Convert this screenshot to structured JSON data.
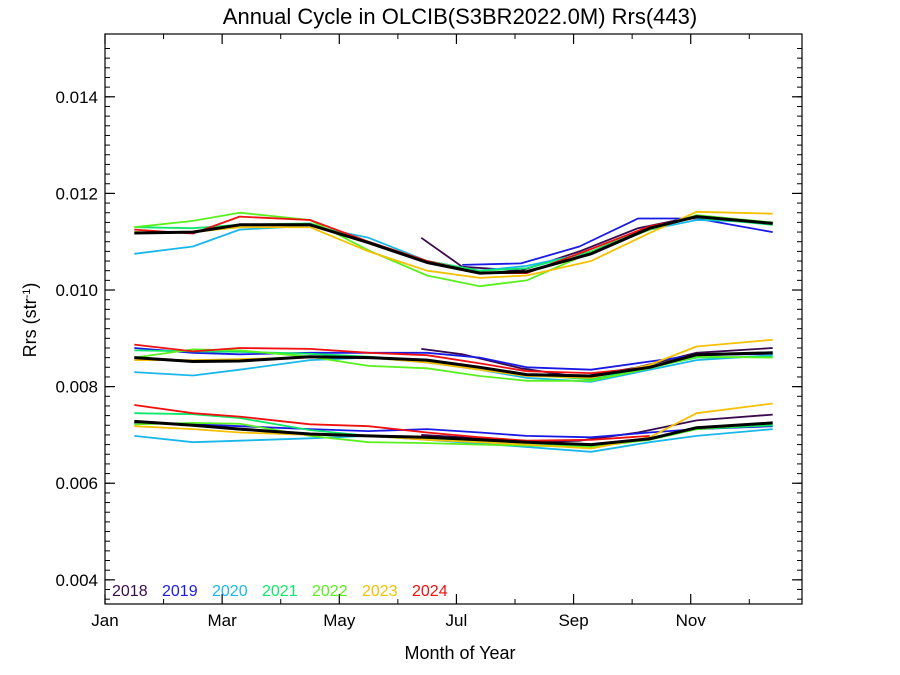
{
  "chart_data": {
    "type": "line",
    "title": "Annual Cycle in OLCIB(S3BR2022.0M) Rrs(443)",
    "xlabel": "Month of Year",
    "ylabel_main": "Rrs (str",
    "ylabel_sup": "-1",
    "ylabel_end": ")",
    "x_ticks": [
      {
        "label": "Jan",
        "value": 1
      },
      {
        "label": "Mar",
        "value": 3
      },
      {
        "label": "May",
        "value": 5
      },
      {
        "label": "Jul",
        "value": 7
      },
      {
        "label": "Sep",
        "value": 9
      },
      {
        "label": "Nov",
        "value": 11
      }
    ],
    "y_ticks": [
      {
        "label": "0.004",
        "value": 0.004
      },
      {
        "label": "0.006",
        "value": 0.006
      },
      {
        "label": "0.008",
        "value": 0.008
      },
      {
        "label": "0.010",
        "value": 0.01
      },
      {
        "label": "0.012",
        "value": 0.012
      },
      {
        "label": "0.014",
        "value": 0.014
      }
    ],
    "xlim": [
      1,
      12.9
    ],
    "ylim": [
      0.0035,
      0.0153
    ],
    "legend_position": "bottom-left",
    "legend": [
      {
        "label": "2018",
        "color": "#3a0a4f"
      },
      {
        "label": "2019",
        "color": "#1a1ae6"
      },
      {
        "label": "2020",
        "color": "#1ab8ea"
      },
      {
        "label": "2021",
        "color": "#0ee868"
      },
      {
        "label": "2022",
        "color": "#5af01e"
      },
      {
        "label": "2023",
        "color": "#f5c000"
      },
      {
        "label": "2024",
        "color": "#f01010"
      }
    ],
    "mean_color": "#000000",
    "series": [
      {
        "color": "#3a0a4f",
        "group": "upper",
        "x": [
          6.4,
          7.1,
          8.1,
          9.1,
          10.1,
          11.1,
          12.4
        ],
        "y": [
          0.01108,
          0.01048,
          0.0104,
          0.0108,
          0.01128,
          0.01153,
          0.01138
        ]
      },
      {
        "color": "#1a1ae6",
        "group": "upper",
        "x": [
          7.1,
          8.1,
          9.1,
          10.1,
          11.1,
          12.4
        ],
        "y": [
          0.01052,
          0.01055,
          0.0109,
          0.01148,
          0.01148,
          0.0112
        ]
      },
      {
        "color": "#1ab8ea",
        "group": "upper",
        "x": [
          1.5,
          2.5,
          3.3,
          4.5,
          5.5,
          6.5,
          7.4,
          8.2,
          9.3,
          10.3,
          11.1,
          12.4
        ],
        "y": [
          0.01075,
          0.0109,
          0.01125,
          0.01133,
          0.01108,
          0.0106,
          0.0104,
          0.0105,
          0.01078,
          0.01125,
          0.01145,
          0.0114
        ]
      },
      {
        "color": "#0ee868",
        "group": "upper",
        "x": [
          1.5,
          2.5,
          3.3,
          4.5,
          5.5,
          6.5,
          7.4,
          8.2,
          9.3,
          10.3,
          11.1,
          12.4
        ],
        "y": [
          0.0113,
          0.01128,
          0.01135,
          0.01138,
          0.011,
          0.0106,
          0.0104,
          0.01045,
          0.0108,
          0.0113,
          0.0115,
          0.01135
        ]
      },
      {
        "color": "#5af01e",
        "group": "upper",
        "x": [
          1.5,
          2.5,
          3.3,
          4.5,
          5.5,
          6.5,
          7.4,
          8.2,
          9.3,
          10.3,
          11.1,
          12.4
        ],
        "y": [
          0.0113,
          0.01143,
          0.0116,
          0.01145,
          0.01082,
          0.0103,
          0.01008,
          0.0102,
          0.01078,
          0.01125,
          0.01155,
          0.0114
        ]
      },
      {
        "color": "#f5c000",
        "group": "upper",
        "x": [
          1.5,
          2.5,
          3.3,
          4.5,
          5.5,
          6.5,
          7.4,
          8.2,
          9.3,
          10.3,
          11.1,
          12.4
        ],
        "y": [
          0.0112,
          0.0112,
          0.0113,
          0.0113,
          0.0108,
          0.0104,
          0.01025,
          0.0103,
          0.0106,
          0.01118,
          0.01162,
          0.01158
        ]
      },
      {
        "color": "#f01010",
        "group": "upper",
        "x": [
          1.5,
          2.5,
          3.3,
          4.5,
          5.5,
          6.5,
          7.4,
          8.2,
          9.3,
          10.3,
          11.1
        ],
        "y": [
          0.01125,
          0.01117,
          0.01152,
          0.01145,
          0.011,
          0.0106,
          0.01035,
          0.01035,
          0.01085,
          0.01132,
          0.0115
        ]
      },
      {
        "color": "#000000",
        "group": "upper",
        "mean": true,
        "x": [
          1.5,
          2.5,
          3.3,
          4.5,
          5.5,
          6.5,
          7.4,
          8.2,
          9.3,
          10.3,
          11.1,
          12.4
        ],
        "y": [
          0.01118,
          0.0112,
          0.01135,
          0.01135,
          0.01098,
          0.01057,
          0.01035,
          0.01038,
          0.01075,
          0.01128,
          0.01152,
          0.01138
        ]
      },
      {
        "color": "#3a0a4f",
        "group": "middle",
        "x": [
          6.4,
          7.1,
          8.1,
          9.1,
          10.1,
          11.1,
          12.4
        ],
        "y": [
          0.00878,
          0.00867,
          0.00838,
          0.0082,
          0.0084,
          0.0087,
          0.0088
        ]
      },
      {
        "color": "#1a1ae6",
        "group": "middle",
        "x": [
          1.5,
          2.5,
          3.3,
          4.5,
          5.5,
          6.5,
          7.4,
          8.2,
          9.3,
          10.3,
          11.1,
          12.4
        ],
        "y": [
          0.0088,
          0.0087,
          0.00867,
          0.0087,
          0.0087,
          0.0087,
          0.0086,
          0.0084,
          0.00835,
          0.00852,
          0.00865,
          0.00868
        ]
      },
      {
        "color": "#1ab8ea",
        "group": "middle",
        "x": [
          1.5,
          2.5,
          3.3,
          4.5,
          5.5,
          6.5,
          7.4,
          8.2,
          9.3,
          10.3,
          11.1,
          12.4
        ],
        "y": [
          0.0083,
          0.00823,
          0.00835,
          0.00855,
          0.0086,
          0.0085,
          0.00835,
          0.00818,
          0.0081,
          0.00835,
          0.00855,
          0.00865
        ]
      },
      {
        "color": "#0ee868",
        "group": "middle",
        "x": [
          1.5,
          2.5,
          3.3,
          4.5,
          5.5,
          6.5,
          7.4,
          8.2,
          9.3,
          10.3,
          11.1,
          12.4
        ],
        "y": [
          0.00875,
          0.00873,
          0.00872,
          0.00868,
          0.00862,
          0.00852,
          0.0084,
          0.00825,
          0.00815,
          0.0084,
          0.0086,
          0.00862
        ]
      },
      {
        "color": "#5af01e",
        "group": "middle",
        "x": [
          1.5,
          2.5,
          3.3,
          4.5,
          5.5,
          6.5,
          7.4,
          8.2,
          9.3,
          10.3,
          11.1,
          12.4
        ],
        "y": [
          0.0086,
          0.00877,
          0.00875,
          0.00862,
          0.00843,
          0.00838,
          0.00822,
          0.00812,
          0.00812,
          0.00838,
          0.00862,
          0.0086
        ]
      },
      {
        "color": "#f5c000",
        "group": "middle",
        "x": [
          1.5,
          2.5,
          3.3,
          4.5,
          5.5,
          6.5,
          7.4,
          8.2,
          9.3,
          10.3,
          11.1,
          12.4
        ],
        "y": [
          0.00855,
          0.00855,
          0.00857,
          0.0086,
          0.0086,
          0.0085,
          0.00835,
          0.00822,
          0.00818,
          0.00845,
          0.00883,
          0.00897
        ]
      },
      {
        "color": "#f01010",
        "group": "middle",
        "x": [
          1.5,
          2.5,
          3.3,
          4.5,
          5.5,
          6.5,
          7.4,
          8.2,
          9.3,
          10.3
        ],
        "y": [
          0.00887,
          0.00873,
          0.0088,
          0.00878,
          0.0087,
          0.00865,
          0.00848,
          0.00832,
          0.00828,
          0.0084
        ]
      },
      {
        "color": "#000000",
        "group": "middle",
        "mean": true,
        "x": [
          1.5,
          2.5,
          3.3,
          4.5,
          5.5,
          6.5,
          7.4,
          8.2,
          9.3,
          10.3,
          11.1,
          12.4
        ],
        "y": [
          0.0086,
          0.00852,
          0.00853,
          0.00862,
          0.0086,
          0.00855,
          0.0084,
          0.00825,
          0.00822,
          0.0084,
          0.00866,
          0.0087
        ]
      },
      {
        "color": "#3a0a4f",
        "group": "lower",
        "x": [
          6.4,
          7.1,
          8.1,
          9.1,
          10.1,
          11.1,
          12.4
        ],
        "y": [
          0.007,
          0.00695,
          0.00685,
          0.00688,
          0.00705,
          0.0073,
          0.00742
        ]
      },
      {
        "color": "#1a1ae6",
        "group": "lower",
        "x": [
          1.5,
          2.5,
          3.3,
          4.5,
          5.5,
          6.5,
          7.4,
          8.2,
          9.3,
          10.3,
          11.1,
          12.4
        ],
        "y": [
          0.00725,
          0.00722,
          0.00718,
          0.00712,
          0.00708,
          0.00712,
          0.00705,
          0.00698,
          0.00695,
          0.00705,
          0.00712,
          0.00718
        ]
      },
      {
        "color": "#1ab8ea",
        "group": "lower",
        "x": [
          1.5,
          2.5,
          3.3,
          4.5,
          5.5,
          6.5,
          7.4,
          8.2,
          9.3,
          10.3,
          11.1,
          12.4
        ],
        "y": [
          0.00698,
          0.00685,
          0.00688,
          0.00693,
          0.00698,
          0.0069,
          0.00682,
          0.00675,
          0.00665,
          0.00685,
          0.00698,
          0.00712
        ]
      },
      {
        "color": "#0ee868",
        "group": "lower",
        "x": [
          1.5,
          2.5,
          3.3,
          4.5,
          5.5,
          6.5,
          7.4,
          8.2,
          9.3,
          10.3,
          11.1,
          12.4
        ],
        "y": [
          0.00745,
          0.00743,
          0.00735,
          0.0071,
          0.00698,
          0.00692,
          0.00688,
          0.0068,
          0.00678,
          0.0069,
          0.00712,
          0.0072
        ]
      },
      {
        "color": "#5af01e",
        "group": "lower",
        "x": [
          1.5,
          2.5,
          3.3,
          4.5,
          5.5,
          6.5,
          7.4,
          8.2,
          9.3,
          10.3,
          11.1,
          12.4
        ],
        "y": [
          0.00722,
          0.00725,
          0.00723,
          0.00698,
          0.00685,
          0.00683,
          0.0068,
          0.00678,
          0.00675,
          0.0069,
          0.00712,
          0.00725
        ]
      },
      {
        "color": "#f5c000",
        "group": "lower",
        "x": [
          1.5,
          2.5,
          3.3,
          4.5,
          5.5,
          6.5,
          7.4,
          8.2,
          9.3,
          10.3,
          11.1,
          12.4
        ],
        "y": [
          0.00718,
          0.00712,
          0.00705,
          0.007,
          0.00698,
          0.0069,
          0.00685,
          0.0068,
          0.00672,
          0.00695,
          0.00745,
          0.00765
        ]
      },
      {
        "color": "#f01010",
        "group": "lower",
        "x": [
          1.5,
          2.5,
          3.3,
          4.5,
          5.5,
          6.5,
          7.4,
          8.2,
          9.3,
          10.3
        ],
        "y": [
          0.00762,
          0.00745,
          0.00738,
          0.00722,
          0.00718,
          0.00705,
          0.00695,
          0.00688,
          0.0069,
          0.00698
        ]
      },
      {
        "color": "#000000",
        "group": "lower",
        "mean": true,
        "x": [
          1.5,
          2.5,
          3.3,
          4.5,
          5.5,
          6.5,
          7.4,
          8.2,
          9.3,
          10.3,
          11.1,
          12.4
        ],
        "y": [
          0.00728,
          0.0072,
          0.00712,
          0.00702,
          0.00698,
          0.00695,
          0.0069,
          0.00685,
          0.0068,
          0.00692,
          0.00715,
          0.00725
        ]
      }
    ]
  }
}
